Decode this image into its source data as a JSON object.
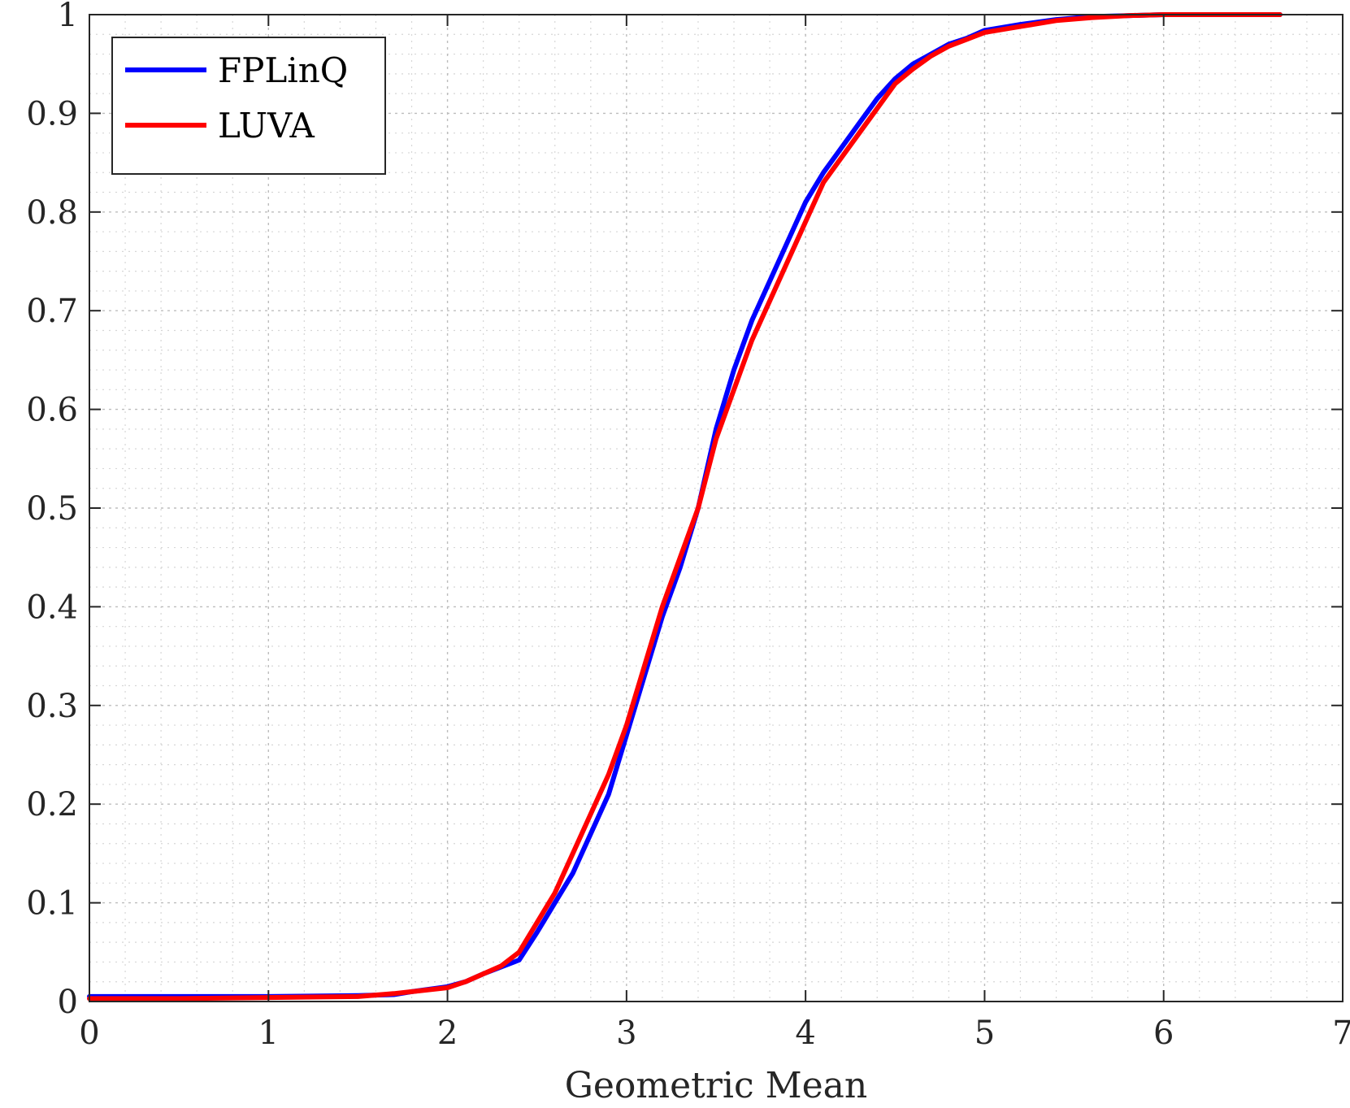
{
  "chart_data": {
    "type": "line",
    "title": "",
    "xlabel": "Geometric Mean",
    "ylabel": "",
    "xlim": [
      0,
      7
    ],
    "ylim": [
      0,
      1
    ],
    "xticks": [
      "0",
      "1",
      "2",
      "3",
      "4",
      "5",
      "6",
      "7"
    ],
    "yticks": [
      "0",
      "0.1",
      "0.2",
      "0.3",
      "0.4",
      "0.5",
      "0.6",
      "0.7",
      "0.8",
      "0.9",
      "1"
    ],
    "grid": "major and minor dotted",
    "legend_position": "top-left",
    "series": [
      {
        "name": "FPLinQ",
        "color": "#0000ff",
        "x": [
          0,
          0.5,
          1.0,
          1.5,
          1.7,
          1.8,
          2.0,
          2.1,
          2.2,
          2.3,
          2.4,
          2.5,
          2.6,
          2.7,
          2.8,
          2.9,
          3.0,
          3.1,
          3.2,
          3.3,
          3.4,
          3.5,
          3.6,
          3.7,
          3.8,
          3.9,
          4.0,
          4.1,
          4.2,
          4.3,
          4.4,
          4.5,
          4.6,
          4.7,
          4.8,
          4.9,
          5.0,
          5.2,
          5.4,
          5.6,
          5.8,
          6.0,
          6.3,
          6.65
        ],
        "values": [
          0.005,
          0.005,
          0.005,
          0.006,
          0.007,
          0.01,
          0.015,
          0.02,
          0.028,
          0.035,
          0.042,
          0.07,
          0.1,
          0.13,
          0.17,
          0.21,
          0.27,
          0.33,
          0.39,
          0.44,
          0.5,
          0.58,
          0.64,
          0.69,
          0.73,
          0.77,
          0.81,
          0.84,
          0.865,
          0.89,
          0.915,
          0.935,
          0.95,
          0.96,
          0.97,
          0.976,
          0.984,
          0.99,
          0.995,
          0.998,
          0.999,
          1.0,
          1.0,
          1.0
        ]
      },
      {
        "name": "LUVA",
        "color": "#ff0000",
        "x": [
          0,
          0.5,
          1.0,
          1.5,
          1.7,
          1.8,
          2.0,
          2.1,
          2.2,
          2.3,
          2.4,
          2.5,
          2.6,
          2.7,
          2.8,
          2.9,
          3.0,
          3.1,
          3.2,
          3.3,
          3.4,
          3.5,
          3.6,
          3.7,
          3.8,
          3.9,
          4.0,
          4.1,
          4.2,
          4.3,
          4.4,
          4.5,
          4.6,
          4.7,
          4.8,
          4.9,
          5.0,
          5.2,
          5.4,
          5.6,
          5.8,
          6.0,
          6.3,
          6.65
        ],
        "values": [
          0.003,
          0.003,
          0.004,
          0.005,
          0.008,
          0.01,
          0.014,
          0.02,
          0.028,
          0.036,
          0.05,
          0.08,
          0.11,
          0.15,
          0.19,
          0.23,
          0.28,
          0.34,
          0.4,
          0.45,
          0.5,
          0.57,
          0.62,
          0.67,
          0.71,
          0.75,
          0.79,
          0.83,
          0.855,
          0.88,
          0.905,
          0.93,
          0.945,
          0.958,
          0.968,
          0.975,
          0.982,
          0.988,
          0.994,
          0.997,
          0.999,
          1.0,
          1.0,
          1.0
        ]
      }
    ]
  }
}
